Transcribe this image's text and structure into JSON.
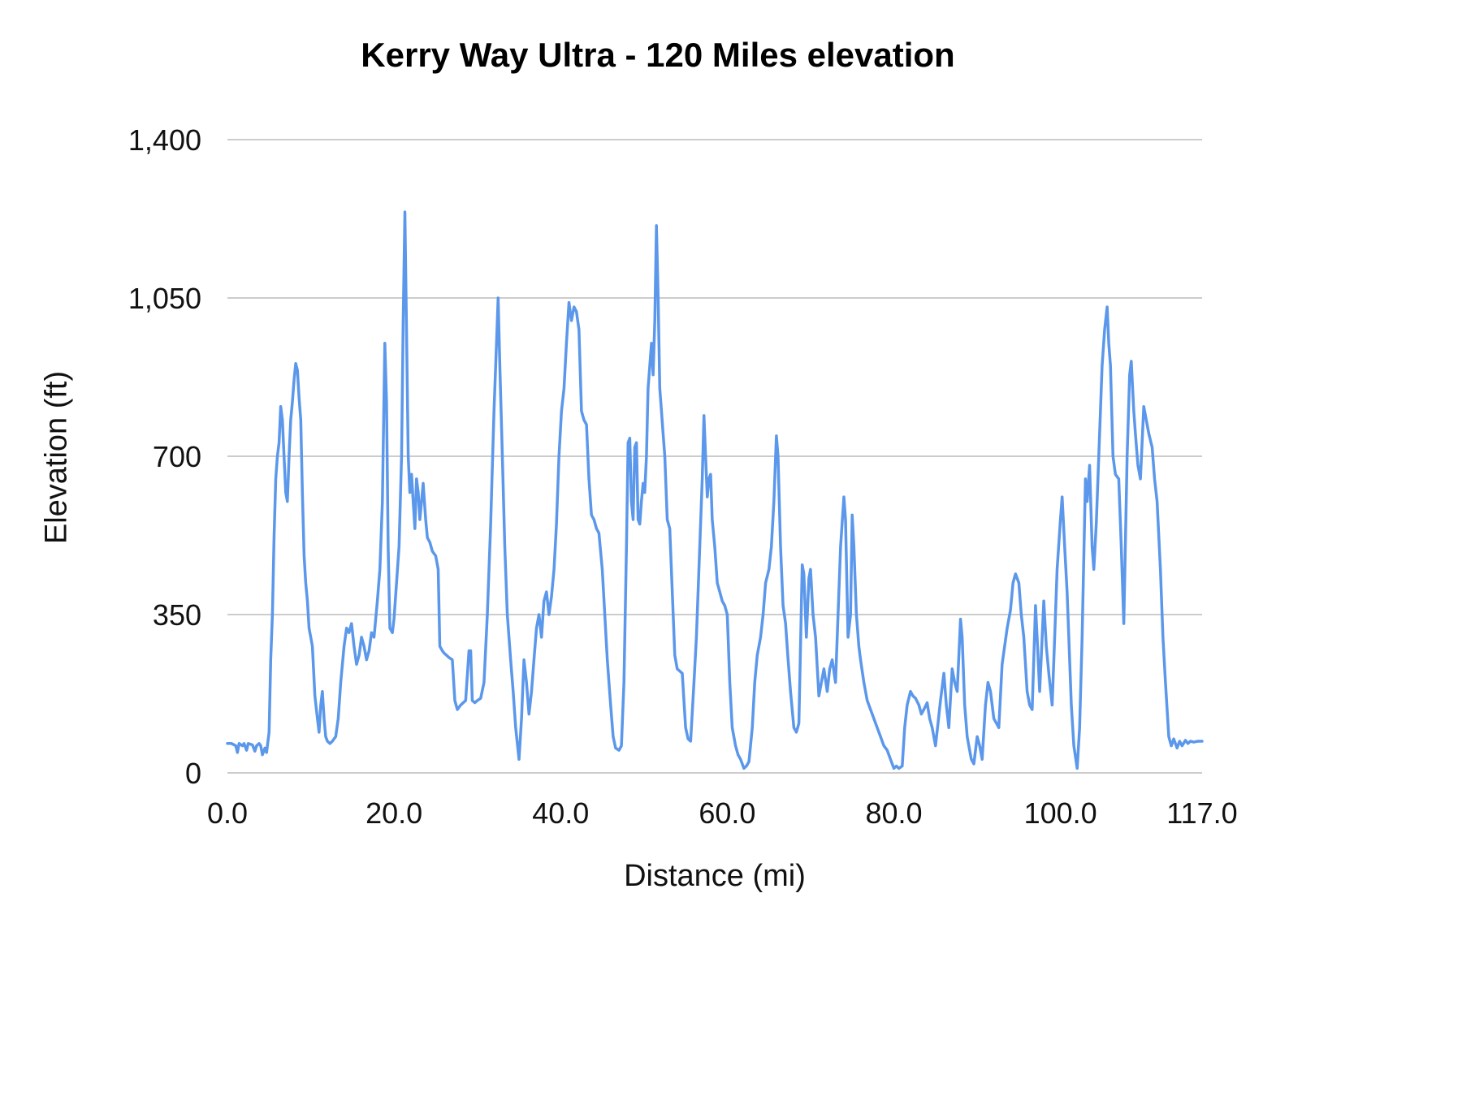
{
  "chart_data": {
    "type": "line",
    "title": "Kerry Way Ultra - 120 Miles elevation",
    "xlabel": "Distance (mi)",
    "ylabel": "Elevation (ft)",
    "xlim": [
      0,
      117
    ],
    "ylim": [
      0,
      1400
    ],
    "grid": "horizontal-only",
    "legend": "none",
    "line_color": "#5b97ea",
    "line_width": 3.5,
    "gridline_color": "#cccccc",
    "background_color": "#ffffff",
    "x_ticks": [
      {
        "value": 0,
        "label": "0.0"
      },
      {
        "value": 20,
        "label": "20.0"
      },
      {
        "value": 40,
        "label": "40.0"
      },
      {
        "value": 60,
        "label": "60.0"
      },
      {
        "value": 80,
        "label": "80.0"
      },
      {
        "value": 100,
        "label": "100.0"
      },
      {
        "value": 117,
        "label": "117.0"
      }
    ],
    "y_ticks": [
      {
        "value": 0,
        "label": "0"
      },
      {
        "value": 350,
        "label": "350"
      },
      {
        "value": 700,
        "label": "700"
      },
      {
        "value": 1050,
        "label": "1,050"
      },
      {
        "value": 1400,
        "label": "1,400"
      }
    ],
    "points": [
      [
        0.0,
        65
      ],
      [
        0.5,
        65
      ],
      [
        1.0,
        60
      ],
      [
        1.2,
        45
      ],
      [
        1.4,
        65
      ],
      [
        1.8,
        60
      ],
      [
        2.0,
        65
      ],
      [
        2.3,
        50
      ],
      [
        2.5,
        65
      ],
      [
        3.0,
        62
      ],
      [
        3.3,
        48
      ],
      [
        3.5,
        60
      ],
      [
        3.8,
        65
      ],
      [
        4.0,
        60
      ],
      [
        4.2,
        40
      ],
      [
        4.5,
        55
      ],
      [
        4.7,
        45
      ],
      [
        5.0,
        90
      ],
      [
        5.2,
        250
      ],
      [
        5.4,
        350
      ],
      [
        5.6,
        520
      ],
      [
        5.8,
        650
      ],
      [
        6.0,
        700
      ],
      [
        6.2,
        730
      ],
      [
        6.4,
        810
      ],
      [
        6.6,
        780
      ],
      [
        6.8,
        700
      ],
      [
        7.0,
        620
      ],
      [
        7.2,
        600
      ],
      [
        7.4,
        700
      ],
      [
        7.6,
        780
      ],
      [
        7.8,
        820
      ],
      [
        8.0,
        870
      ],
      [
        8.2,
        905
      ],
      [
        8.4,
        890
      ],
      [
        8.6,
        830
      ],
      [
        8.8,
        780
      ],
      [
        9.0,
        620
      ],
      [
        9.2,
        480
      ],
      [
        9.4,
        420
      ],
      [
        9.6,
        380
      ],
      [
        9.8,
        320
      ],
      [
        10.0,
        300
      ],
      [
        10.2,
        280
      ],
      [
        10.5,
        170
      ],
      [
        10.8,
        120
      ],
      [
        11.0,
        90
      ],
      [
        11.2,
        150
      ],
      [
        11.4,
        180
      ],
      [
        11.6,
        120
      ],
      [
        11.8,
        80
      ],
      [
        12.0,
        70
      ],
      [
        12.3,
        65
      ],
      [
        12.6,
        70
      ],
      [
        13.0,
        80
      ],
      [
        13.3,
        120
      ],
      [
        13.6,
        200
      ],
      [
        14.0,
        280
      ],
      [
        14.3,
        320
      ],
      [
        14.6,
        310
      ],
      [
        14.9,
        330
      ],
      [
        15.2,
        280
      ],
      [
        15.5,
        240
      ],
      [
        15.8,
        260
      ],
      [
        16.1,
        300
      ],
      [
        16.4,
        280
      ],
      [
        16.7,
        250
      ],
      [
        17.0,
        270
      ],
      [
        17.3,
        310
      ],
      [
        17.6,
        300
      ],
      [
        18.0,
        380
      ],
      [
        18.3,
        450
      ],
      [
        18.6,
        600
      ],
      [
        18.9,
        950
      ],
      [
        19.1,
        820
      ],
      [
        19.3,
        500
      ],
      [
        19.5,
        320
      ],
      [
        19.8,
        310
      ],
      [
        20.0,
        340
      ],
      [
        20.3,
        420
      ],
      [
        20.6,
        500
      ],
      [
        20.9,
        700
      ],
      [
        21.1,
        1000
      ],
      [
        21.3,
        1240
      ],
      [
        21.5,
        980
      ],
      [
        21.7,
        700
      ],
      [
        21.9,
        620
      ],
      [
        22.1,
        660
      ],
      [
        22.3,
        600
      ],
      [
        22.5,
        540
      ],
      [
        22.7,
        650
      ],
      [
        22.9,
        620
      ],
      [
        23.1,
        560
      ],
      [
        23.3,
        600
      ],
      [
        23.5,
        640
      ],
      [
        23.8,
        560
      ],
      [
        24.0,
        520
      ],
      [
        24.3,
        510
      ],
      [
        24.6,
        490
      ],
      [
        25.0,
        480
      ],
      [
        25.3,
        450
      ],
      [
        25.5,
        280
      ],
      [
        25.8,
        270
      ],
      [
        26.0,
        265
      ],
      [
        26.3,
        260
      ],
      [
        26.6,
        255
      ],
      [
        27.0,
        250
      ],
      [
        27.3,
        160
      ],
      [
        27.6,
        140
      ],
      [
        28.0,
        150
      ],
      [
        28.3,
        155
      ],
      [
        28.6,
        160
      ],
      [
        29.0,
        270
      ],
      [
        29.2,
        270
      ],
      [
        29.4,
        160
      ],
      [
        29.7,
        155
      ],
      [
        30.0,
        160
      ],
      [
        30.4,
        165
      ],
      [
        30.8,
        200
      ],
      [
        31.2,
        350
      ],
      [
        31.6,
        550
      ],
      [
        32.0,
        800
      ],
      [
        32.3,
        950
      ],
      [
        32.5,
        1050
      ],
      [
        32.7,
        900
      ],
      [
        33.0,
        700
      ],
      [
        33.3,
        500
      ],
      [
        33.6,
        350
      ],
      [
        34.0,
        250
      ],
      [
        34.3,
        180
      ],
      [
        34.6,
        100
      ],
      [
        35.0,
        30
      ],
      [
        35.3,
        120
      ],
      [
        35.6,
        250
      ],
      [
        35.9,
        200
      ],
      [
        36.2,
        130
      ],
      [
        36.5,
        180
      ],
      [
        36.8,
        250
      ],
      [
        37.1,
        320
      ],
      [
        37.4,
        350
      ],
      [
        37.7,
        300
      ],
      [
        38.0,
        380
      ],
      [
        38.3,
        400
      ],
      [
        38.6,
        350
      ],
      [
        38.9,
        390
      ],
      [
        39.2,
        450
      ],
      [
        39.5,
        550
      ],
      [
        39.8,
        700
      ],
      [
        40.1,
        800
      ],
      [
        40.4,
        850
      ],
      [
        40.7,
        950
      ],
      [
        41.0,
        1040
      ],
      [
        41.3,
        1000
      ],
      [
        41.6,
        1030
      ],
      [
        41.9,
        1020
      ],
      [
        42.2,
        980
      ],
      [
        42.5,
        800
      ],
      [
        42.8,
        780
      ],
      [
        43.1,
        770
      ],
      [
        43.4,
        650
      ],
      [
        43.7,
        570
      ],
      [
        44.0,
        560
      ],
      [
        44.3,
        540
      ],
      [
        44.6,
        530
      ],
      [
        45.0,
        450
      ],
      [
        45.3,
        350
      ],
      [
        45.6,
        250
      ],
      [
        46.0,
        150
      ],
      [
        46.3,
        80
      ],
      [
        46.6,
        55
      ],
      [
        47.0,
        50
      ],
      [
        47.3,
        60
      ],
      [
        47.6,
        200
      ],
      [
        47.9,
        500
      ],
      [
        48.1,
        730
      ],
      [
        48.3,
        740
      ],
      [
        48.5,
        600
      ],
      [
        48.7,
        560
      ],
      [
        48.9,
        720
      ],
      [
        49.1,
        730
      ],
      [
        49.3,
        560
      ],
      [
        49.5,
        550
      ],
      [
        49.7,
        600
      ],
      [
        49.9,
        640
      ],
      [
        50.1,
        620
      ],
      [
        50.3,
        700
      ],
      [
        50.5,
        850
      ],
      [
        50.7,
        900
      ],
      [
        50.9,
        950
      ],
      [
        51.1,
        880
      ],
      [
        51.3,
        1000
      ],
      [
        51.5,
        1210
      ],
      [
        51.7,
        1050
      ],
      [
        51.9,
        850
      ],
      [
        52.1,
        800
      ],
      [
        52.3,
        750
      ],
      [
        52.5,
        700
      ],
      [
        52.8,
        560
      ],
      [
        53.1,
        540
      ],
      [
        53.4,
        400
      ],
      [
        53.7,
        260
      ],
      [
        54.0,
        230
      ],
      [
        54.3,
        225
      ],
      [
        54.6,
        220
      ],
      [
        55.0,
        100
      ],
      [
        55.3,
        75
      ],
      [
        55.6,
        70
      ],
      [
        56.0,
        200
      ],
      [
        56.3,
        300
      ],
      [
        56.6,
        450
      ],
      [
        57.0,
        650
      ],
      [
        57.2,
        790
      ],
      [
        57.4,
        700
      ],
      [
        57.6,
        610
      ],
      [
        57.8,
        650
      ],
      [
        58.0,
        660
      ],
      [
        58.2,
        560
      ],
      [
        58.5,
        500
      ],
      [
        58.8,
        420
      ],
      [
        59.1,
        400
      ],
      [
        59.4,
        380
      ],
      [
        59.7,
        370
      ],
      [
        60.0,
        350
      ],
      [
        60.3,
        200
      ],
      [
        60.6,
        100
      ],
      [
        61.0,
        60
      ],
      [
        61.3,
        40
      ],
      [
        61.6,
        30
      ],
      [
        62.0,
        10
      ],
      [
        62.3,
        15
      ],
      [
        62.6,
        25
      ],
      [
        63.0,
        100
      ],
      [
        63.3,
        200
      ],
      [
        63.6,
        260
      ],
      [
        64.0,
        300
      ],
      [
        64.3,
        350
      ],
      [
        64.6,
        420
      ],
      [
        65.0,
        450
      ],
      [
        65.3,
        500
      ],
      [
        65.6,
        600
      ],
      [
        65.9,
        745
      ],
      [
        66.1,
        700
      ],
      [
        66.4,
        500
      ],
      [
        66.7,
        370
      ],
      [
        67.0,
        330
      ],
      [
        67.3,
        250
      ],
      [
        67.6,
        180
      ],
      [
        68.0,
        100
      ],
      [
        68.3,
        90
      ],
      [
        68.6,
        110
      ],
      [
        69.0,
        460
      ],
      [
        69.2,
        440
      ],
      [
        69.5,
        300
      ],
      [
        69.8,
        430
      ],
      [
        70.0,
        450
      ],
      [
        70.3,
        350
      ],
      [
        70.6,
        300
      ],
      [
        71.0,
        170
      ],
      [
        71.3,
        200
      ],
      [
        71.6,
        230
      ],
      [
        72.0,
        180
      ],
      [
        72.3,
        230
      ],
      [
        72.6,
        250
      ],
      [
        73.0,
        200
      ],
      [
        73.3,
        350
      ],
      [
        73.6,
        500
      ],
      [
        74.0,
        610
      ],
      [
        74.2,
        560
      ],
      [
        74.5,
        300
      ],
      [
        74.8,
        350
      ],
      [
        75.0,
        570
      ],
      [
        75.2,
        500
      ],
      [
        75.5,
        350
      ],
      [
        75.8,
        280
      ],
      [
        76.0,
        250
      ],
      [
        76.4,
        200
      ],
      [
        76.8,
        160
      ],
      [
        77.2,
        140
      ],
      [
        77.6,
        120
      ],
      [
        78.0,
        100
      ],
      [
        78.4,
        80
      ],
      [
        78.8,
        60
      ],
      [
        79.2,
        50
      ],
      [
        79.6,
        30
      ],
      [
        80.0,
        10
      ],
      [
        80.3,
        15
      ],
      [
        80.6,
        10
      ],
      [
        81.0,
        15
      ],
      [
        81.3,
        100
      ],
      [
        81.6,
        150
      ],
      [
        82.0,
        180
      ],
      [
        82.3,
        170
      ],
      [
        82.6,
        165
      ],
      [
        83.0,
        150
      ],
      [
        83.3,
        130
      ],
      [
        83.6,
        140
      ],
      [
        84.0,
        155
      ],
      [
        84.3,
        120
      ],
      [
        84.6,
        100
      ],
      [
        85.0,
        60
      ],
      [
        85.3,
        110
      ],
      [
        85.6,
        160
      ],
      [
        86.0,
        220
      ],
      [
        86.3,
        150
      ],
      [
        86.6,
        100
      ],
      [
        87.0,
        230
      ],
      [
        87.3,
        200
      ],
      [
        87.6,
        180
      ],
      [
        88.0,
        340
      ],
      [
        88.2,
        300
      ],
      [
        88.5,
        150
      ],
      [
        88.8,
        80
      ],
      [
        89.0,
        60
      ],
      [
        89.3,
        30
      ],
      [
        89.6,
        20
      ],
      [
        90.0,
        80
      ],
      [
        90.3,
        60
      ],
      [
        90.6,
        30
      ],
      [
        91.0,
        150
      ],
      [
        91.3,
        200
      ],
      [
        91.6,
        180
      ],
      [
        92.0,
        120
      ],
      [
        92.3,
        110
      ],
      [
        92.6,
        100
      ],
      [
        93.0,
        240
      ],
      [
        93.3,
        280
      ],
      [
        93.6,
        320
      ],
      [
        94.0,
        360
      ],
      [
        94.3,
        420
      ],
      [
        94.6,
        440
      ],
      [
        95.0,
        420
      ],
      [
        95.3,
        350
      ],
      [
        95.6,
        300
      ],
      [
        96.0,
        180
      ],
      [
        96.3,
        150
      ],
      [
        96.6,
        140
      ],
      [
        97.0,
        370
      ],
      [
        97.2,
        300
      ],
      [
        97.5,
        180
      ],
      [
        97.8,
        300
      ],
      [
        98.0,
        380
      ],
      [
        98.3,
        280
      ],
      [
        98.6,
        220
      ],
      [
        99.0,
        150
      ],
      [
        99.3,
        300
      ],
      [
        99.6,
        450
      ],
      [
        100.0,
        560
      ],
      [
        100.2,
        610
      ],
      [
        100.5,
        500
      ],
      [
        100.8,
        400
      ],
      [
        101.0,
        300
      ],
      [
        101.3,
        150
      ],
      [
        101.6,
        60
      ],
      [
        102.0,
        10
      ],
      [
        102.3,
        100
      ],
      [
        102.6,
        300
      ],
      [
        103.0,
        650
      ],
      [
        103.2,
        600
      ],
      [
        103.5,
        680
      ],
      [
        103.8,
        500
      ],
      [
        104.0,
        450
      ],
      [
        104.3,
        550
      ],
      [
        104.6,
        700
      ],
      [
        105.0,
        900
      ],
      [
        105.3,
        980
      ],
      [
        105.6,
        1030
      ],
      [
        105.8,
        950
      ],
      [
        106.0,
        900
      ],
      [
        106.3,
        700
      ],
      [
        106.6,
        660
      ],
      [
        107.0,
        650
      ],
      [
        107.3,
        500
      ],
      [
        107.6,
        330
      ],
      [
        108.0,
        700
      ],
      [
        108.3,
        880
      ],
      [
        108.5,
        910
      ],
      [
        108.8,
        800
      ],
      [
        109.0,
        750
      ],
      [
        109.3,
        680
      ],
      [
        109.6,
        650
      ],
      [
        110.0,
        810
      ],
      [
        110.3,
        780
      ],
      [
        110.6,
        750
      ],
      [
        111.0,
        720
      ],
      [
        111.3,
        650
      ],
      [
        111.6,
        600
      ],
      [
        112.0,
        450
      ],
      [
        112.3,
        300
      ],
      [
        112.6,
        200
      ],
      [
        113.0,
        80
      ],
      [
        113.3,
        60
      ],
      [
        113.6,
        75
      ],
      [
        114.0,
        55
      ],
      [
        114.3,
        70
      ],
      [
        114.6,
        60
      ],
      [
        115.0,
        72
      ],
      [
        115.3,
        65
      ],
      [
        115.6,
        70
      ],
      [
        116.0,
        68
      ],
      [
        116.5,
        70
      ],
      [
        117.0,
        70
      ]
    ]
  }
}
